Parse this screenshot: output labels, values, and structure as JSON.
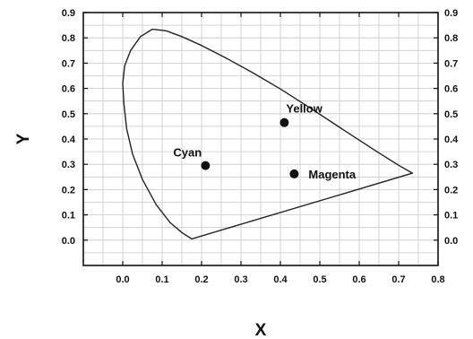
{
  "chart_data": {
    "type": "scatter",
    "title": "",
    "xlabel": "X",
    "ylabel": "Y",
    "xlim": [
      -0.1,
      0.8
    ],
    "ylim": [
      -0.1,
      0.9
    ],
    "x_ticks": [
      "0.0",
      "0.1",
      "0.2",
      "0.3",
      "0.4",
      "0.5",
      "0.6",
      "0.7",
      "0.8"
    ],
    "x_tick_values": [
      0.0,
      0.1,
      0.2,
      0.3,
      0.4,
      0.5,
      0.6,
      0.7,
      0.8
    ],
    "y_ticks": [
      "0.0",
      "0.1",
      "0.2",
      "0.3",
      "0.4",
      "0.5",
      "0.6",
      "0.7",
      "0.8",
      "0.9"
    ],
    "y_tick_values": [
      0.0,
      0.1,
      0.2,
      0.3,
      0.4,
      0.5,
      0.6,
      0.7,
      0.8,
      0.9
    ],
    "grid": true,
    "right_axis_labels": true,
    "locus": [
      [
        0.175,
        0.005
      ],
      [
        0.15,
        0.03
      ],
      [
        0.12,
        0.07
      ],
      [
        0.085,
        0.14
      ],
      [
        0.05,
        0.24
      ],
      [
        0.025,
        0.34
      ],
      [
        0.01,
        0.44
      ],
      [
        0.003,
        0.54
      ],
      [
        0.0,
        0.62
      ],
      [
        0.005,
        0.69
      ],
      [
        0.02,
        0.75
      ],
      [
        0.045,
        0.805
      ],
      [
        0.075,
        0.834
      ],
      [
        0.11,
        0.828
      ],
      [
        0.15,
        0.805
      ],
      [
        0.2,
        0.77
      ],
      [
        0.26,
        0.722
      ],
      [
        0.33,
        0.662
      ],
      [
        0.4,
        0.598
      ],
      [
        0.48,
        0.518
      ],
      [
        0.56,
        0.436
      ],
      [
        0.64,
        0.355
      ],
      [
        0.7,
        0.296
      ],
      [
        0.735,
        0.265
      ],
      [
        0.175,
        0.005
      ]
    ],
    "points": [
      {
        "name": "Yellow",
        "x": 0.41,
        "y": 0.465
      },
      {
        "name": "Cyan",
        "x": 0.21,
        "y": 0.295
      },
      {
        "name": "Magenta",
        "x": 0.435,
        "y": 0.262
      }
    ],
    "colors": {
      "axis": "#111111",
      "grid": "#c8c8c8",
      "locus": "#222222",
      "marker": "#111111"
    }
  }
}
